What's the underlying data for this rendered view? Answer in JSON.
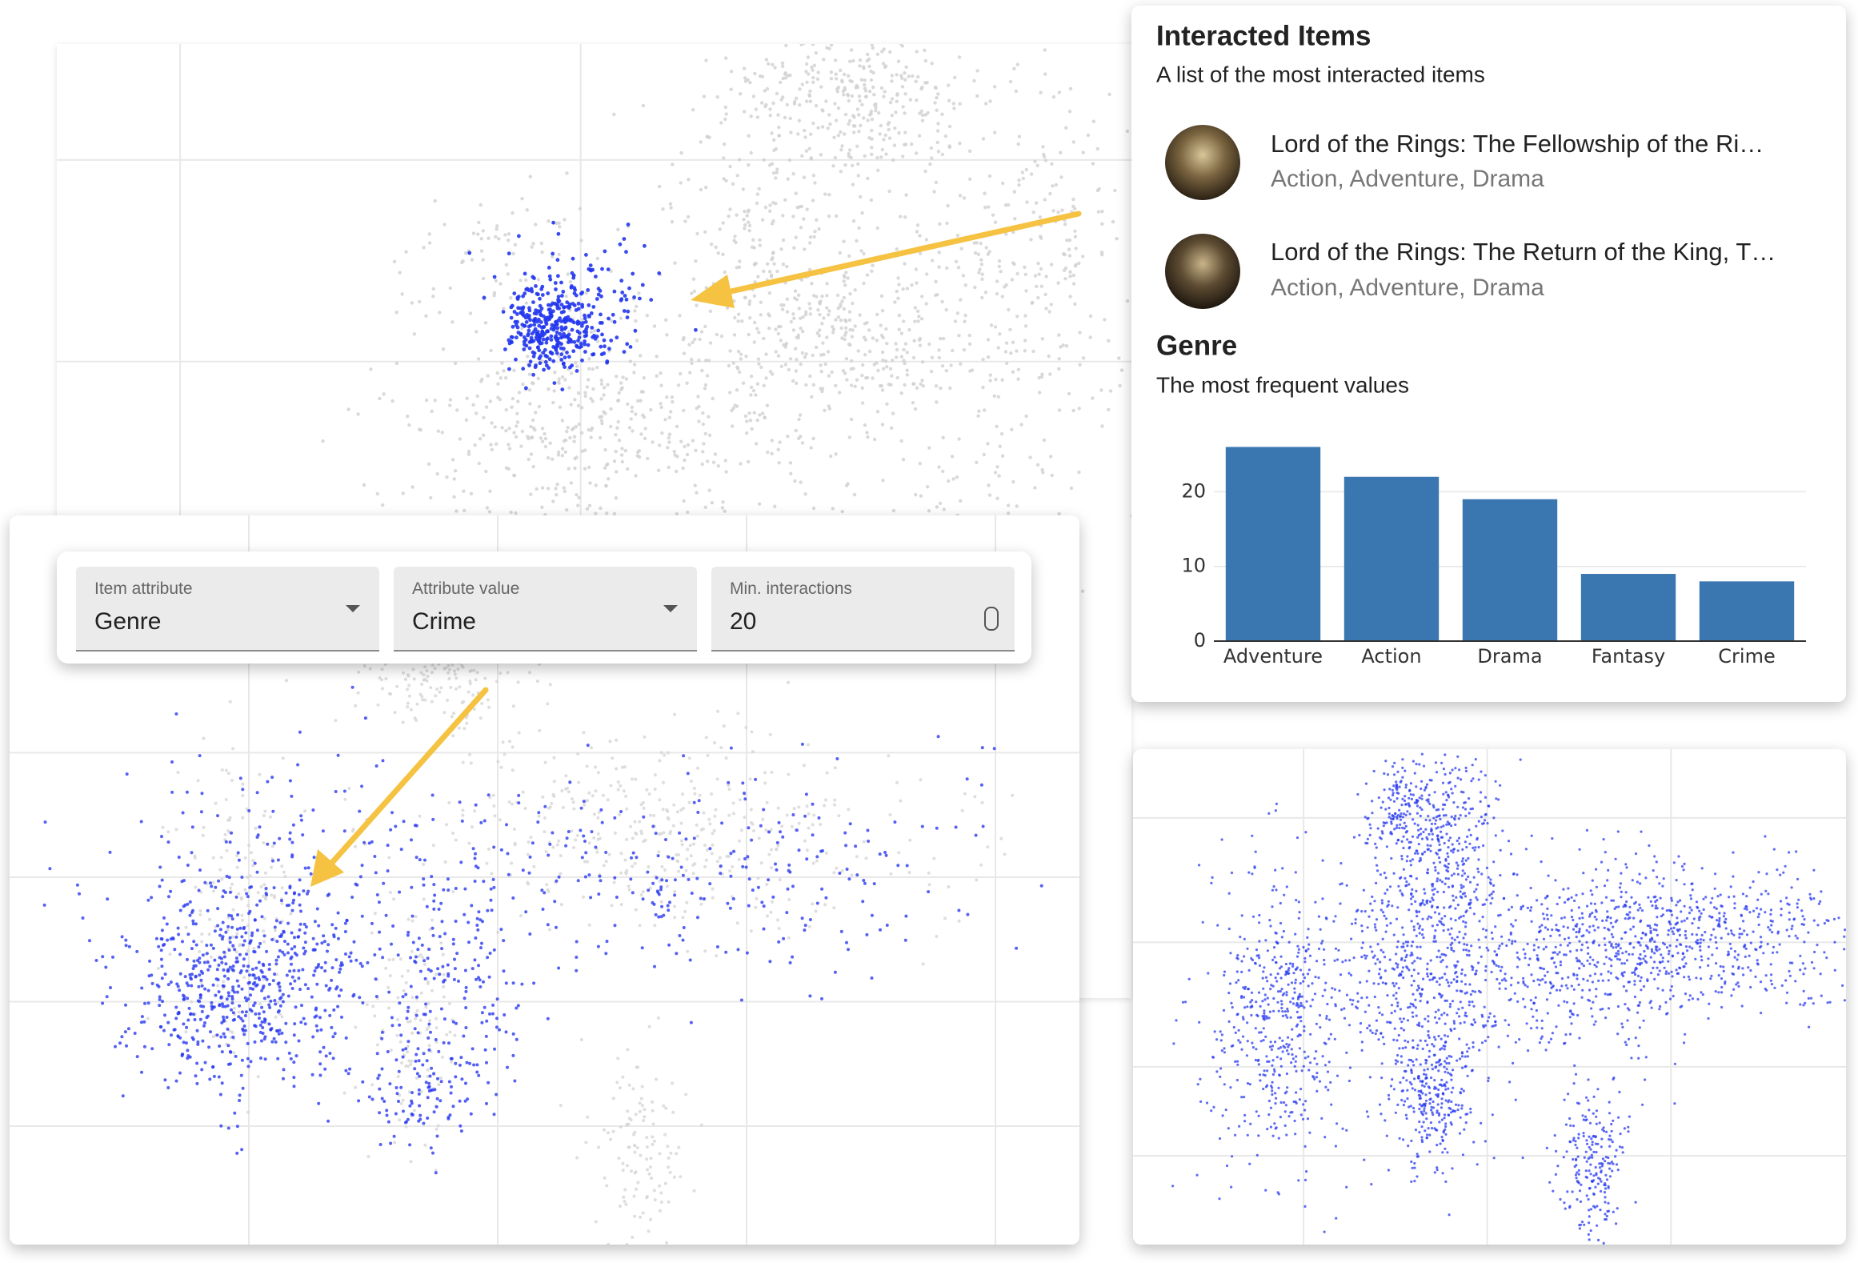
{
  "interacted_items": {
    "title": "Interacted Items",
    "subtitle": "A list of the most interacted items",
    "items": [
      {
        "title": "Lord of the Rings: The Fellowship of the Ri…",
        "genres": "Action, Adventure, Drama"
      },
      {
        "title": "Lord of the Rings: The Return of the King, T…",
        "genres": "Action, Adventure, Drama"
      }
    ]
  },
  "chart_data": {
    "type": "bar",
    "title": "Genre",
    "subtitle": "The most frequent values",
    "categories": [
      "Adventure",
      "Action",
      "Drama",
      "Fantasy",
      "Crime"
    ],
    "values": [
      26,
      22,
      19,
      9,
      8
    ],
    "color": "#3a76b0",
    "ylim": [
      0,
      27
    ],
    "yticks": [
      0,
      10,
      20
    ],
    "grid": true
  },
  "filters": [
    {
      "label": "Item attribute",
      "value": "Genre"
    },
    {
      "label": "Attribute value",
      "value": "Crime"
    },
    {
      "label": "Min. interactions",
      "value": 20
    }
  ]
}
